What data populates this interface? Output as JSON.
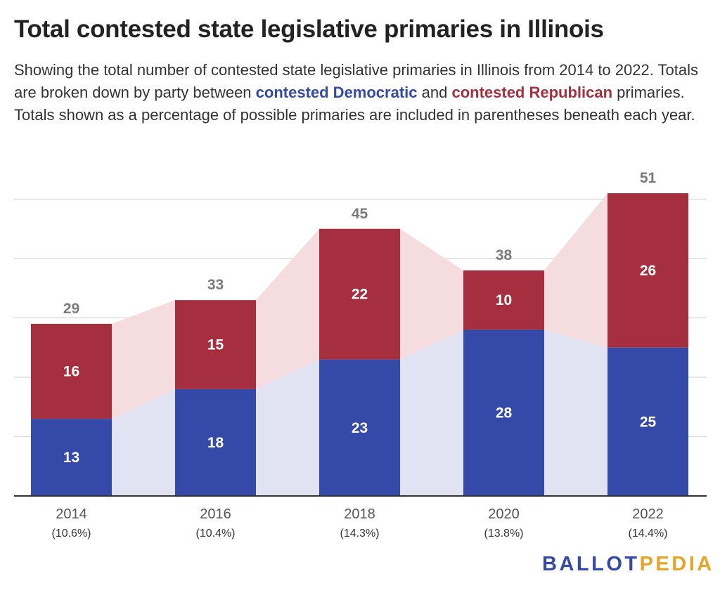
{
  "title": "Total contested state legislative primaries in Illinois",
  "subtitle": {
    "part1": "Showing the total number of contested state legislative primaries in Illinois from 2014 to 2022. Totals are broken down by party between ",
    "dem_label": "contested Democratic",
    "part2": " and ",
    "rep_label": "contested Republican",
    "part3": " primaries. Totals shown as a percentage of possible primaries are included in parentheses beneath each year."
  },
  "logo": {
    "part1": "BALLOT",
    "part2": "PEDIA"
  },
  "colors": {
    "democratic": "#3449a8",
    "republican": "#a52f3e",
    "dem_area": "#e1e3f3",
    "rep_area": "#f5dcdf",
    "gridline": "#dddddd",
    "axis": "#333333",
    "total_label": "#7a7a7a",
    "tick_label": "#555555",
    "bar_label": "#ffffff"
  },
  "chart_data": {
    "type": "bar",
    "stacked": true,
    "categories": [
      "2014",
      "2016",
      "2018",
      "2020",
      "2022"
    ],
    "category_sublabels": [
      "(10.6%)",
      "(10.4%)",
      "(14.3%)",
      "(13.8%)",
      "(14.4%)"
    ],
    "series": [
      {
        "name": "contested Democratic",
        "values": [
          13,
          18,
          23,
          28,
          25
        ]
      },
      {
        "name": "contested Republican",
        "values": [
          16,
          15,
          22,
          10,
          26
        ]
      }
    ],
    "totals": [
      29,
      33,
      45,
      38,
      51
    ],
    "ylim": [
      0,
      51
    ],
    "grid": true,
    "legend": "none"
  }
}
